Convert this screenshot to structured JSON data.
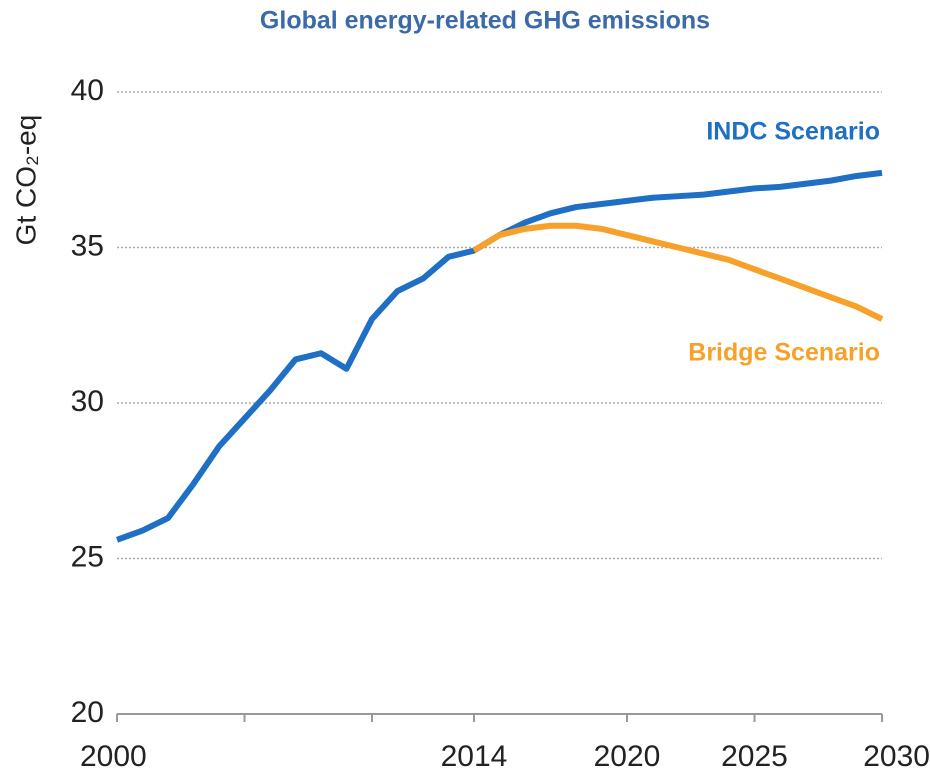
{
  "chart_data": {
    "type": "line",
    "title": "Global energy-related GHG emissions",
    "y_label": "Gt CO₂-eq",
    "x": [
      2000,
      2001,
      2002,
      2003,
      2004,
      2005,
      2006,
      2007,
      2008,
      2009,
      2010,
      2011,
      2012,
      2013,
      2014,
      2015,
      2016,
      2017,
      2018,
      2019,
      2020,
      2021,
      2022,
      2023,
      2024,
      2025,
      2026,
      2027,
      2028,
      2029,
      2030
    ],
    "series": [
      {
        "name": "INDC Scenario",
        "color": "#1f6fc5",
        "values": [
          25.6,
          25.9,
          26.3,
          27.4,
          28.6,
          29.5,
          30.4,
          31.4,
          31.6,
          31.1,
          32.7,
          33.6,
          34.0,
          34.7,
          34.9,
          35.4,
          35.8,
          36.1,
          36.3,
          36.4,
          36.5,
          36.6,
          36.65,
          36.7,
          36.8,
          36.9,
          36.95,
          37.05,
          37.15,
          37.3,
          37.4
        ]
      },
      {
        "name": "Bridge Scenario",
        "color": "#f7a12b",
        "values": [
          null,
          null,
          null,
          null,
          null,
          null,
          null,
          null,
          null,
          null,
          null,
          null,
          null,
          null,
          34.9,
          35.4,
          35.6,
          35.7,
          35.7,
          35.6,
          35.4,
          35.2,
          35.0,
          34.8,
          34.6,
          34.3,
          34.0,
          33.7,
          33.4,
          33.1,
          32.7
        ]
      }
    ],
    "xlim": [
      2000,
      2030
    ],
    "xticks": [
      2000,
      2014,
      2020,
      2025,
      2030
    ],
    "minor_xticks": [
      2005,
      2010
    ],
    "ylim": [
      20,
      40
    ],
    "yticks": [
      20,
      25,
      30,
      35,
      40
    ],
    "grid": true
  }
}
